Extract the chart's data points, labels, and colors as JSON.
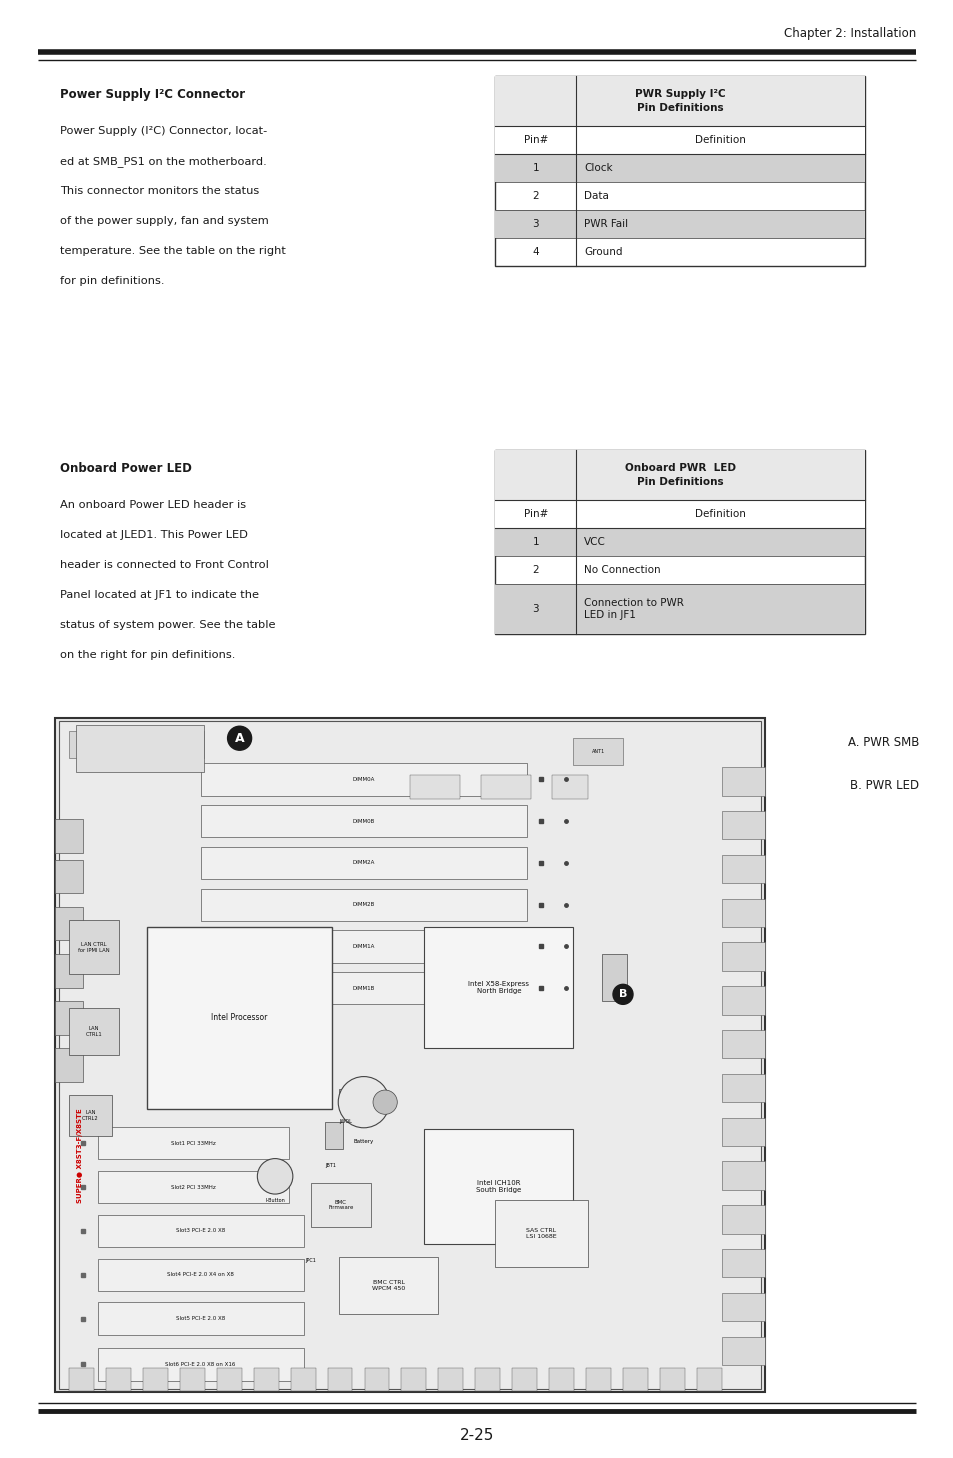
{
  "page_width": 9.54,
  "page_height": 14.58,
  "dpi": 100,
  "bg_color": "#ffffff",
  "text_color": "#1a1a1a",
  "header_text": "Chapter 2: Installation",
  "footer_text": "2-25",
  "header_line_color": "#1a1a1a",
  "section1_title": "Power Supply I²C Connector",
  "section1_body": [
    "Power Supply (I²C) Connector, locat-",
    "ed at SMB_PS1 on the motherboard.",
    "This connector monitors the status",
    "of the power supply, fan and system",
    "temperature. See the table on the right",
    "for pin definitions."
  ],
  "table1_header": "PWR Supply I²C\nPin Definitions",
  "table1_col_headers": [
    "Pin#",
    "Definition"
  ],
  "table1_rows": [
    [
      "1",
      "Clock"
    ],
    [
      "2",
      "Data"
    ],
    [
      "3",
      "PWR Fail"
    ],
    [
      "4",
      "Ground"
    ]
  ],
  "table1_shaded_rows": [
    0,
    2
  ],
  "section2_title": "Onboard Power LED",
  "section2_body": [
    "An onboard Power LED header is",
    "located at JLED1. This Power LED",
    "header is connected to Front Control",
    "Panel located at JF1 to indicate the",
    "status of system power. See the table",
    "on the right for pin definitions."
  ],
  "table2_header": "Onboard PWR  LED\nPin Definitions",
  "table2_col_headers": [
    "Pin#",
    "Definition"
  ],
  "table2_rows": [
    [
      "1",
      "VCC"
    ],
    [
      "2",
      "No Connection"
    ],
    [
      "3",
      "Connection to PWR\nLED in JF1"
    ]
  ],
  "table2_shaded_rows": [
    0,
    2
  ],
  "label_a": "A. PWR SMB",
  "label_b": "B. PWR LED",
  "motherboard_label": "SUPER● X8ST3-F/X8STE",
  "table_border_color": "#333333",
  "shaded_row_color": "#d0d0d0",
  "header_shaded_color": "#e8e8e8",
  "pcb_bg": "#e8e8e8",
  "pcb_border": "#333333"
}
